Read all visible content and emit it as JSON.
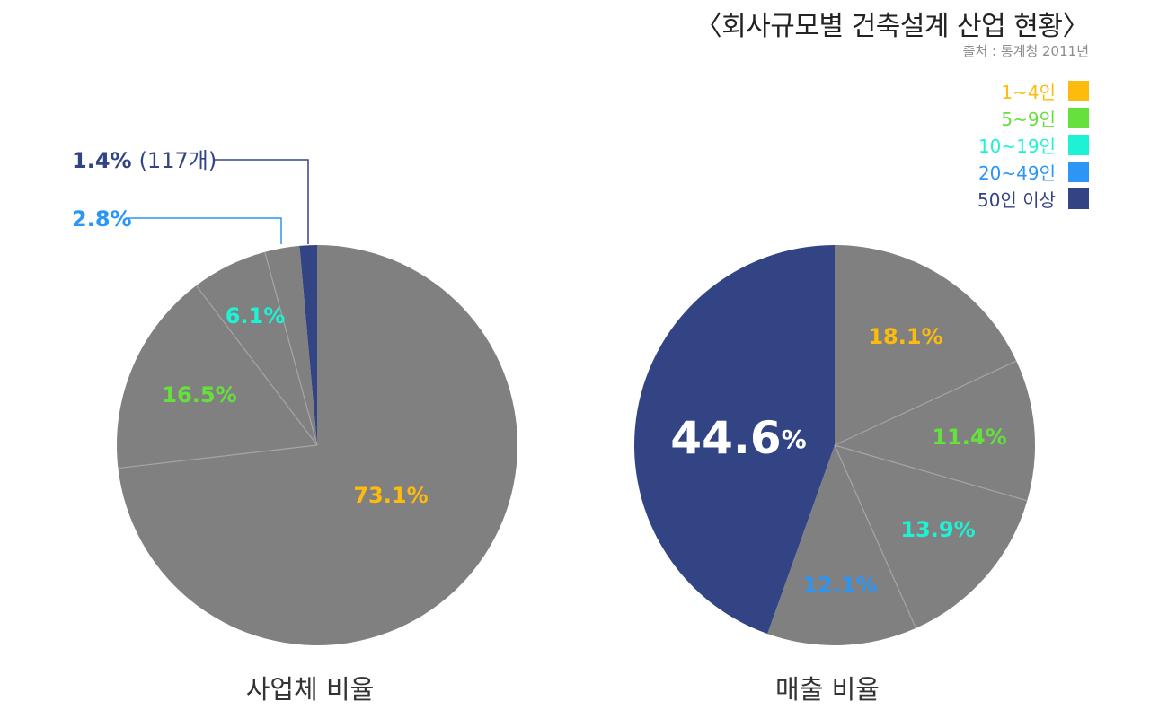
{
  "title": "〈회사규모별 건축설계 산업 현황〉",
  "source": "출처 : 통계청 2011년",
  "legend": [
    {
      "label": "1~4인",
      "color": "#fdbb0d"
    },
    {
      "label": "5~9인",
      "color": "#66e03c"
    },
    {
      "label": "10~19인",
      "color": "#1ef2d4"
    },
    {
      "label": "20~49인",
      "color": "#2b96f5"
    },
    {
      "label": "50인 이상",
      "color": "#334485"
    }
  ],
  "chart_data": [
    {
      "type": "pie",
      "title": "사업체 비율",
      "categories": [
        "1~4인",
        "5~9인",
        "10~19인",
        "20~49인",
        "50인 이상"
      ],
      "values": [
        73.1,
        16.5,
        6.1,
        2.8,
        1.4
      ],
      "labels": [
        "73.1%",
        "16.5%",
        "6.1%",
        "2.8%",
        "1.4%"
      ],
      "note": "(117개)",
      "highlight": "50인 이상"
    },
    {
      "type": "pie",
      "title": "매출 비율",
      "categories": [
        "1~4인",
        "5~9인",
        "10~19인",
        "20~49인",
        "50인 이상"
      ],
      "values": [
        18.1,
        11.4,
        13.9,
        12.1,
        44.6
      ],
      "labels": [
        "18.1%",
        "11.4%",
        "13.9%",
        "12.1%",
        "44.6%"
      ],
      "highlight": "50인 이상"
    }
  ],
  "colors": {
    "slice": "#808080",
    "divider": "#a6a6a6",
    "highlight": "#334485",
    "big_label": "#ffffff"
  }
}
